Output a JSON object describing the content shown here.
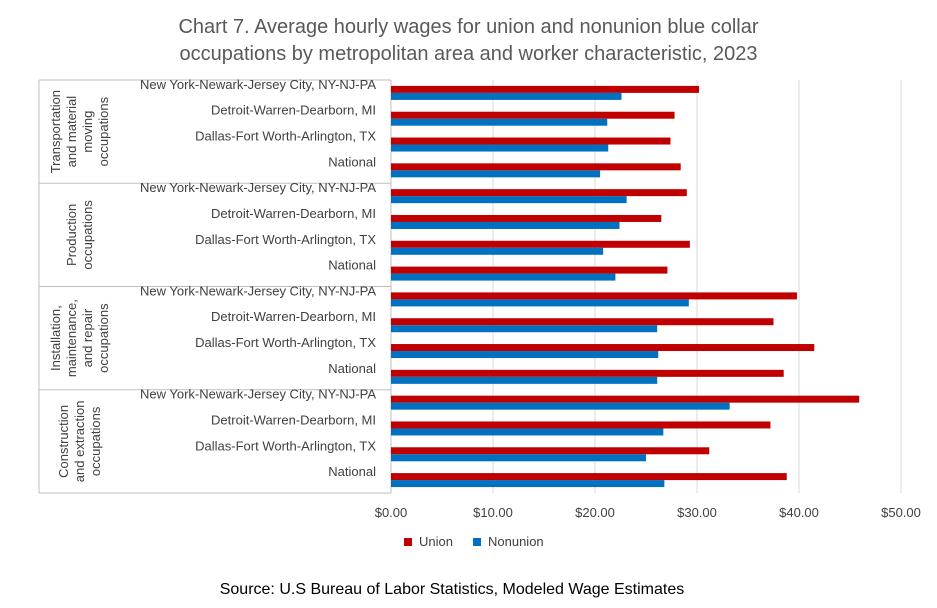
{
  "title_line1": "Chart 7. Average hourly wages for union and nonunion blue collar",
  "title_line2": "occupations by metropolitan area and worker characteristic, 2023",
  "source": "Source: U.S Bureau of Labor Statistics, Modeled Wage Estimates",
  "colors": {
    "union": "#C00000",
    "nonunion": "#0070C0",
    "grid": "#D9D9D9",
    "axis_text": "#404040"
  },
  "chart_data": {
    "type": "bar",
    "orientation": "horizontal",
    "title": "Chart 7. Average hourly wages for union and nonunion blue collar occupations by metropolitan area and worker characteristic, 2023",
    "xlim": [
      0,
      50
    ],
    "x_ticks": [
      "$0.00",
      "$10.00",
      "$20.00",
      "$30.00",
      "$40.00",
      "$50.00"
    ],
    "grid": true,
    "legend_position": "bottom",
    "legend": [
      "Union",
      "Nonunion"
    ],
    "groups": [
      {
        "label_lines": [
          "Transportation",
          "and material",
          "moving",
          "occupations"
        ],
        "categories": [
          "New York-Newark-Jersey City, NY-NJ-PA",
          "Detroit-Warren-Dearborn, MI",
          "Dallas-Fort Worth-Arlington, TX",
          "National"
        ],
        "union": [
          30.2,
          27.8,
          27.4,
          28.4
        ],
        "nonunion": [
          22.6,
          21.2,
          21.3,
          20.5
        ]
      },
      {
        "label_lines": [
          "Production",
          "occupations"
        ],
        "categories": [
          "New York-Newark-Jersey City, NY-NJ-PA",
          "Detroit-Warren-Dearborn, MI",
          "Dallas-Fort Worth-Arlington, TX",
          "National"
        ],
        "union": [
          29.0,
          26.5,
          29.3,
          27.1
        ],
        "nonunion": [
          23.1,
          22.4,
          20.8,
          22.0
        ]
      },
      {
        "label_lines": [
          "Installation,",
          "maintenance,",
          "and repair",
          "occupations"
        ],
        "categories": [
          "New York-Newark-Jersey City, NY-NJ-PA",
          "Detroit-Warren-Dearborn, MI",
          "Dallas-Fort Worth-Arlington, TX",
          "National"
        ],
        "union": [
          39.8,
          37.5,
          41.5,
          38.5
        ],
        "nonunion": [
          29.2,
          26.1,
          26.2,
          26.1
        ]
      },
      {
        "label_lines": [
          "Construction",
          "and extraction",
          "occupations"
        ],
        "categories": [
          "New York-Newark-Jersey City, NY-NJ-PA",
          "Detroit-Warren-Dearborn, MI",
          "Dallas-Fort Worth-Arlington, TX",
          "National"
        ],
        "union": [
          45.9,
          37.2,
          31.2,
          38.8
        ],
        "nonunion": [
          33.2,
          26.7,
          25.0,
          26.8
        ]
      }
    ]
  }
}
